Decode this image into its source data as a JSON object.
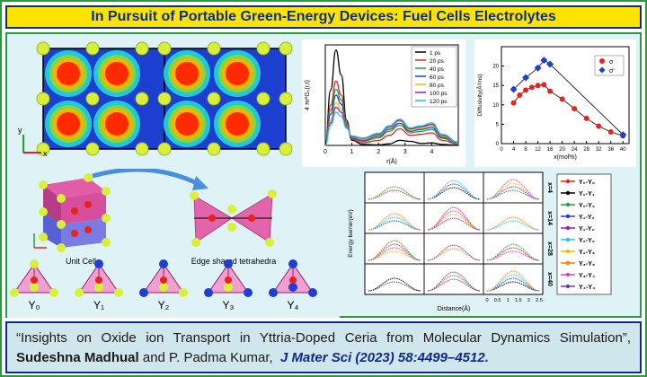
{
  "title": "In Pursuit of Portable Green-Energy Devices: Fuel Cells Electrolytes",
  "citation": {
    "quote": "“Insights on Oxide ion Transport in Yttria-Doped Ceria from Molecular Dynamics Simulation”,",
    "author1": "Sudeshna Madhual",
    "and": "and P. Padma Kumar,",
    "journal": "J Mater Sci (2023) 58:4499–4512."
  },
  "structure": {
    "unit_cell_label": "Unit Cell",
    "edge_label": "Edge shared tetrahedra",
    "y_labels": [
      "Y₀",
      "Y₁",
      "Y₂",
      "Y₃",
      "Y₄"
    ],
    "axis_y": "y",
    "axis_x": "x"
  },
  "chart_data": [
    {
      "type": "line",
      "xlabel": "r(Å)",
      "ylabel": "4 πr²Gₛ(r,t)",
      "xlim": [
        0,
        5
      ],
      "ylim": [
        0,
        2
      ],
      "xticks": [
        0,
        1,
        2,
        3,
        4
      ],
      "legend": "top-right",
      "series": [
        {
          "name": "1 ps",
          "color": "#000000",
          "x": [
            0,
            0.2,
            0.4,
            0.6,
            0.8,
            1.0,
            1.4,
            2.0,
            2.4,
            2.8,
            3.2,
            3.6,
            4.0,
            4.4,
            5.0
          ],
          "values": [
            0,
            1.1,
            1.9,
            1.4,
            0.5,
            0.1,
            0.02,
            0.01,
            0.03,
            0.1,
            0.08,
            0.04,
            0.05,
            0.02,
            0
          ]
        },
        {
          "name": "20 ps",
          "color": "#e8231f",
          "x": [
            0,
            0.2,
            0.4,
            0.6,
            0.8,
            1.0,
            1.4,
            2.0,
            2.4,
            2.8,
            3.2,
            3.6,
            4.0,
            4.4,
            5.0
          ],
          "values": [
            0,
            0.8,
            1.28,
            1.0,
            0.45,
            0.12,
            0.05,
            0.1,
            0.2,
            0.33,
            0.2,
            0.22,
            0.25,
            0.1,
            0.02
          ]
        },
        {
          "name": "40 ps",
          "color": "#1aa53a",
          "x": [
            0,
            0.2,
            0.4,
            0.6,
            0.8,
            1.0,
            1.4,
            2.0,
            2.4,
            2.8,
            3.2,
            3.6,
            4.0,
            4.4,
            5.0
          ],
          "values": [
            0,
            0.7,
            1.12,
            0.9,
            0.42,
            0.14,
            0.08,
            0.15,
            0.28,
            0.4,
            0.25,
            0.28,
            0.32,
            0.14,
            0.03
          ]
        },
        {
          "name": "60 ps",
          "color": "#1f3fd1",
          "x": [
            0,
            0.2,
            0.4,
            0.6,
            0.8,
            1.0,
            1.4,
            2.0,
            2.4,
            2.8,
            3.2,
            3.6,
            4.0,
            4.4,
            5.0
          ],
          "values": [
            0,
            0.62,
            1.0,
            0.82,
            0.4,
            0.15,
            0.1,
            0.18,
            0.32,
            0.44,
            0.28,
            0.32,
            0.36,
            0.16,
            0.04
          ]
        },
        {
          "name": "80 ps",
          "color": "#e0c400",
          "x": [
            0,
            0.2,
            0.4,
            0.6,
            0.8,
            1.0,
            1.4,
            2.0,
            2.4,
            2.8,
            3.2,
            3.6,
            4.0,
            4.4,
            5.0
          ],
          "values": [
            0,
            0.5,
            0.85,
            0.72,
            0.38,
            0.17,
            0.12,
            0.2,
            0.35,
            0.48,
            0.31,
            0.35,
            0.4,
            0.18,
            0.05
          ]
        },
        {
          "name": "100 ps",
          "color": "#9b1bb0",
          "x": [
            0,
            0.2,
            0.4,
            0.6,
            0.8,
            1.0,
            1.4,
            2.0,
            2.4,
            2.8,
            3.2,
            3.6,
            4.0,
            4.4,
            5.0
          ],
          "values": [
            0,
            0.45,
            0.76,
            0.66,
            0.36,
            0.18,
            0.14,
            0.22,
            0.37,
            0.5,
            0.33,
            0.37,
            0.42,
            0.2,
            0.06
          ]
        },
        {
          "name": "120 ps",
          "color": "#20c8d8",
          "x": [
            0,
            0.2,
            0.4,
            0.6,
            0.8,
            1.0,
            1.4,
            2.0,
            2.4,
            2.8,
            3.2,
            3.6,
            4.0,
            4.4,
            5.0
          ],
          "values": [
            0,
            0.4,
            0.66,
            0.58,
            0.34,
            0.19,
            0.15,
            0.24,
            0.39,
            0.52,
            0.35,
            0.39,
            0.45,
            0.22,
            0.07
          ]
        }
      ]
    },
    {
      "type": "line",
      "xlabel": "x(mol%)",
      "ylabel": "Diffusivity(Å²/ns)",
      "xlim": [
        0,
        42
      ],
      "ylim": [
        0,
        25
      ],
      "xticks": [
        0,
        4,
        8,
        12,
        16,
        20,
        24,
        28,
        32,
        36,
        40
      ],
      "yticks": [
        0,
        5,
        10,
        15,
        20
      ],
      "legend": "top-right",
      "series": [
        {
          "name": "σ",
          "color": "#e8231f",
          "marker": "circle",
          "x": [
            4,
            6,
            8,
            10,
            12,
            14,
            16,
            20,
            24,
            28,
            32,
            36,
            40
          ],
          "values": [
            10.5,
            12.5,
            13.8,
            14.5,
            15,
            15.2,
            13.5,
            11.5,
            9,
            6.5,
            4.5,
            3,
            2
          ]
        },
        {
          "name": "σ'",
          "color": "#1f3fd1",
          "marker": "diamond",
          "x": [
            4,
            8,
            12,
            14,
            16,
            40
          ],
          "values": [
            14,
            17,
            19.5,
            21.5,
            20.5,
            2.3
          ]
        }
      ]
    },
    {
      "type": "line",
      "title_rows": [
        "x=4",
        "x=14",
        "x=28",
        "x=40"
      ],
      "xlabel": "Distance(Å)",
      "ylabel": "Energy barrier(eV)",
      "xticks": [
        0,
        0.5,
        1,
        1.5,
        2,
        2.5
      ],
      "legend_entries": [
        {
          "label": "Y₀-Y₀",
          "color": "#e8231f"
        },
        {
          "label": "Y₀-Y₁",
          "color": "#000000"
        },
        {
          "label": "Y₀-Y₂",
          "color": "#1aa53a"
        },
        {
          "label": "Y₁-Y₁",
          "color": "#1f3fd1"
        },
        {
          "label": "Y₁-Y₂",
          "color": "#9b1bb0"
        },
        {
          "label": "Y₂-Y₂",
          "color": "#20c8d8"
        },
        {
          "label": "Y₂-Y₃",
          "color": "#e0c400"
        },
        {
          "label": "Y₃-Y₃",
          "color": "#ff7f00"
        },
        {
          "label": "Y₃-Y₄",
          "color": "#e040c0"
        },
        {
          "label": "Y₄-Y₄",
          "color": "#6b3fa0"
        }
      ]
    }
  ]
}
